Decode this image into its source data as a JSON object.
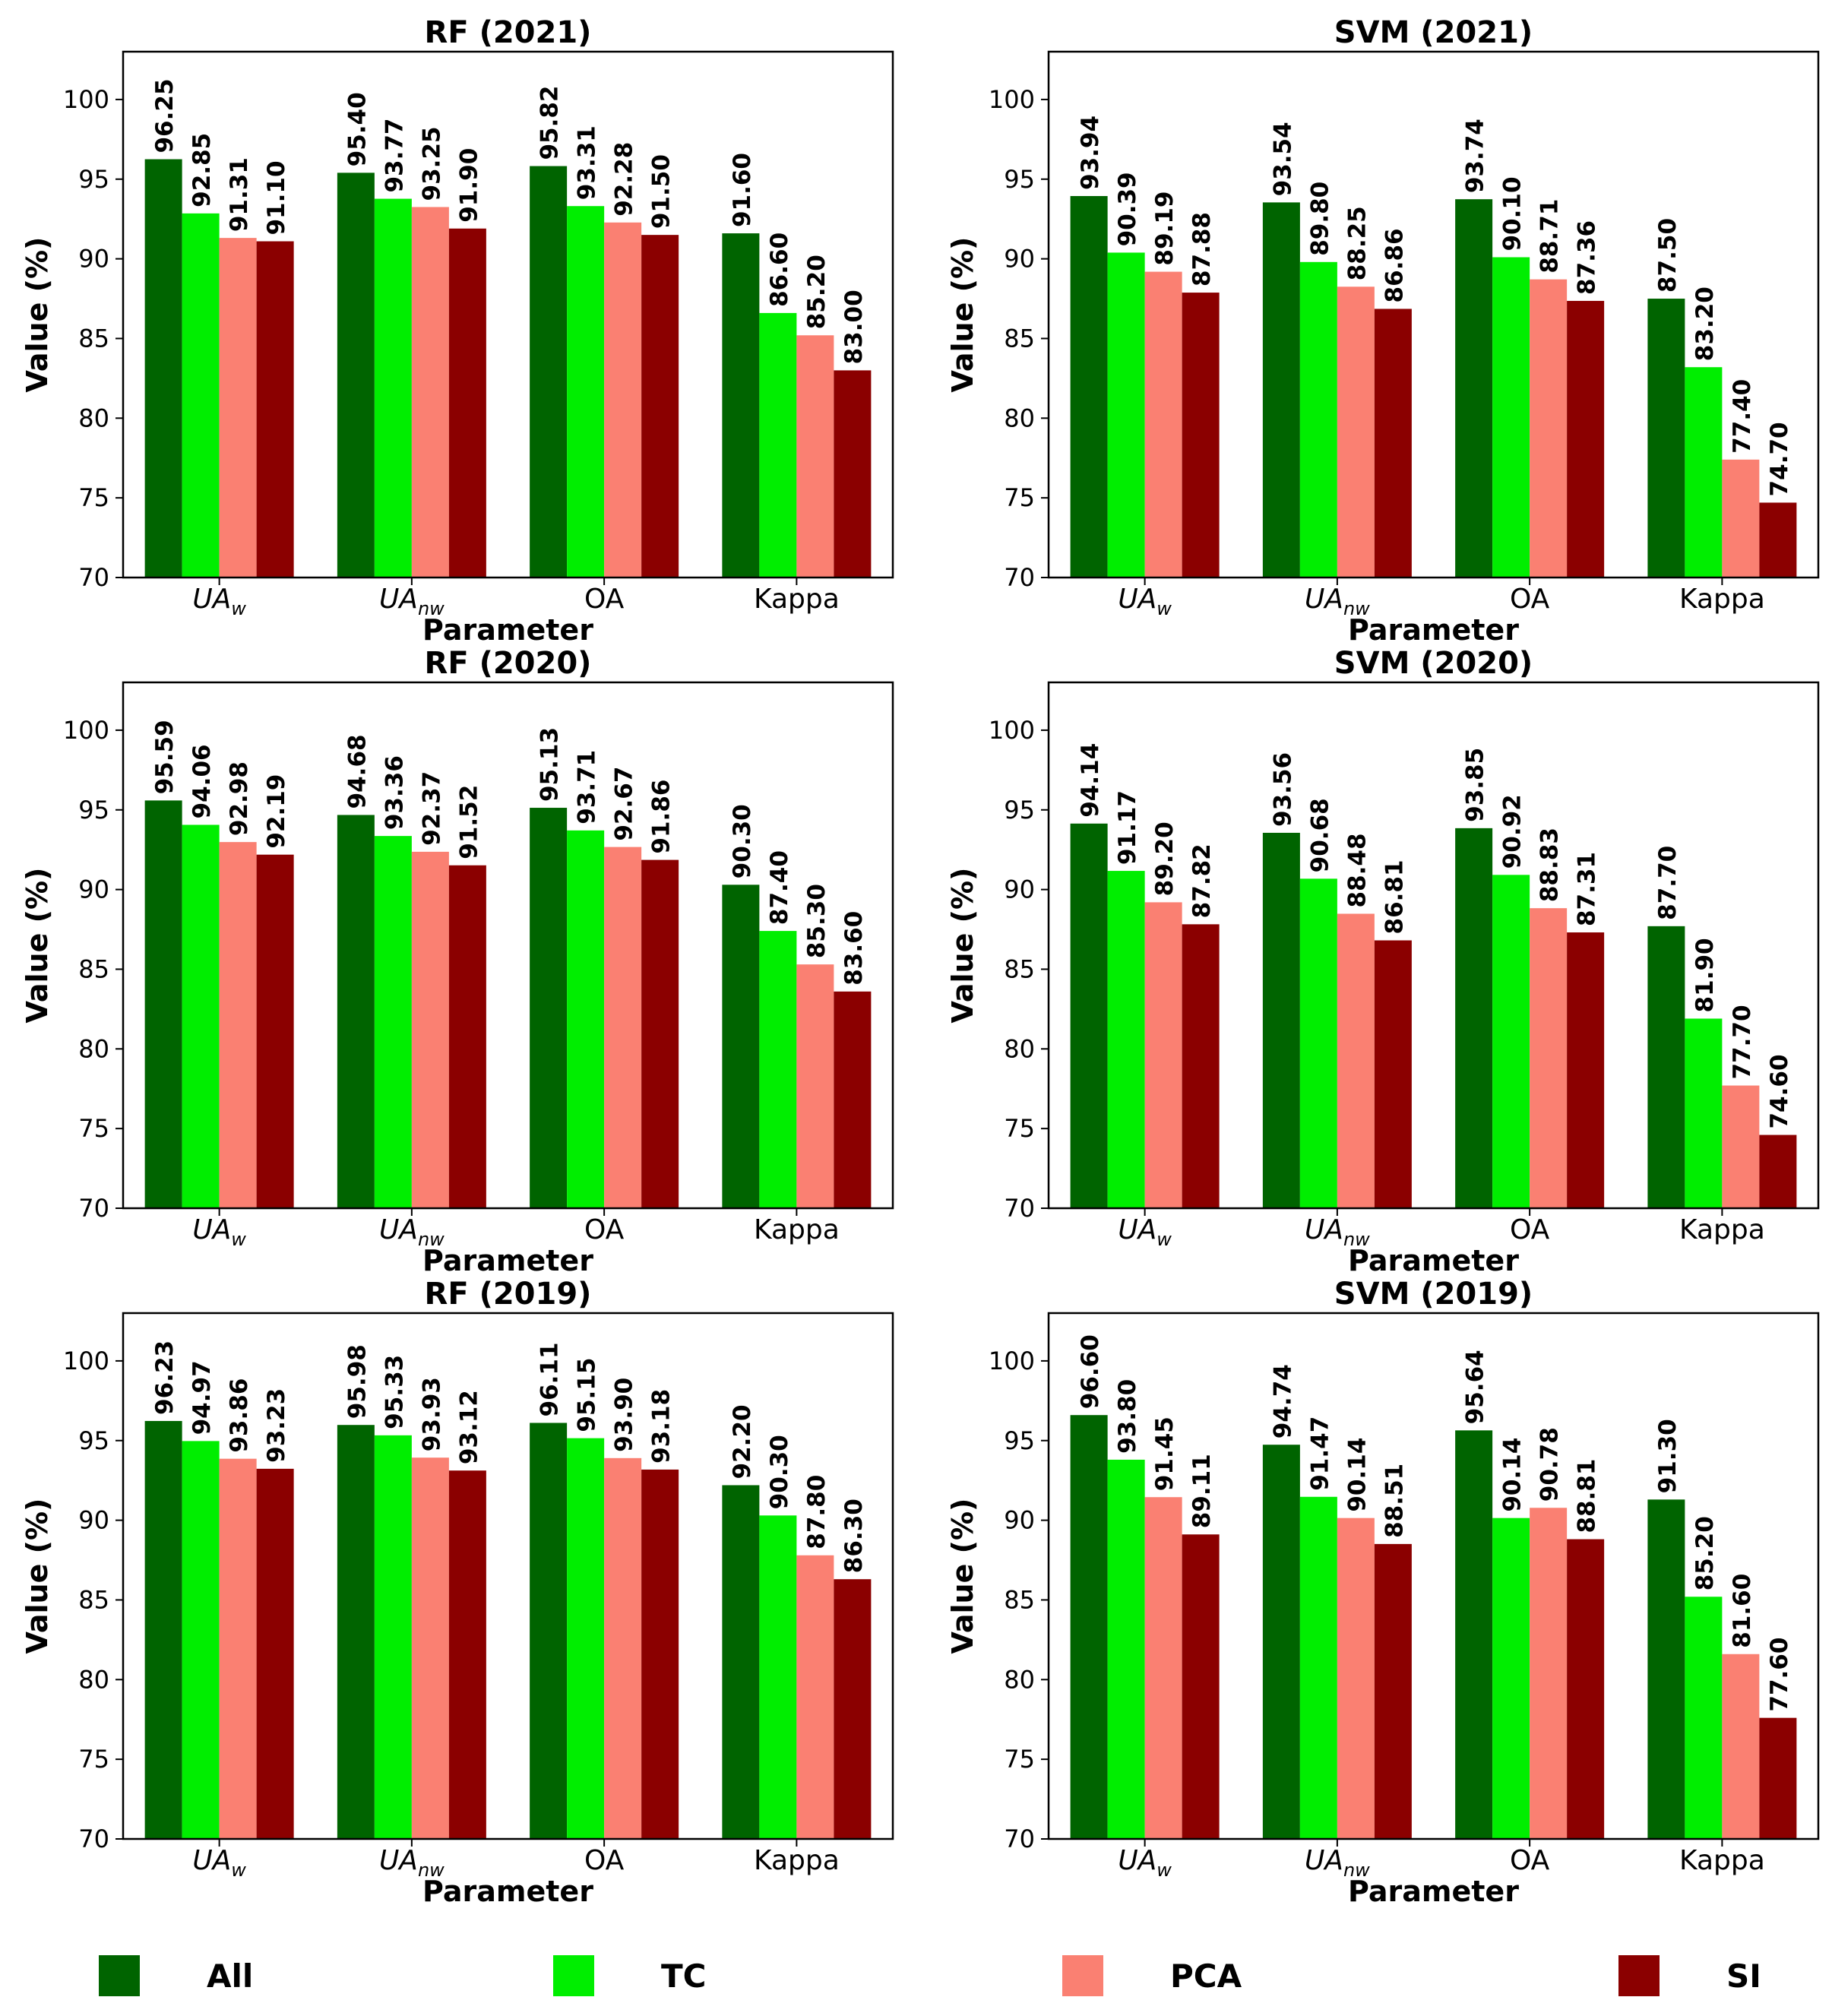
{
  "series_colors": {
    "All": "#006400",
    "TC": "#00ee00",
    "PCA": "#fa8072",
    "SI": "#8b0000"
  },
  "legend": [
    {
      "name": "All",
      "color": "#006400"
    },
    {
      "name": "TC",
      "color": "#00ee00"
    },
    {
      "name": "PCA",
      "color": "#fa8072"
    },
    {
      "name": "SI",
      "color": "#8b0000"
    }
  ],
  "chart_data": [
    {
      "type": "bar",
      "title": "RF (2021)",
      "xlabel": "Parameter",
      "ylabel": "Value (%)",
      "ylim": [
        70,
        103
      ],
      "yticks": [
        70,
        75,
        80,
        85,
        90,
        95,
        100
      ],
      "categories": [
        {
          "base": "UA",
          "sub": "w"
        },
        {
          "base": "UA",
          "sub": "nw"
        },
        {
          "base": "OA",
          "sub": ""
        },
        {
          "base": "Kappa",
          "sub": ""
        }
      ],
      "series": [
        {
          "name": "All",
          "values": [
            96.25,
            95.4,
            95.82,
            91.6
          ]
        },
        {
          "name": "TC",
          "values": [
            92.85,
            93.77,
            93.31,
            86.6
          ]
        },
        {
          "name": "PCA",
          "values": [
            91.31,
            93.25,
            92.28,
            85.2
          ]
        },
        {
          "name": "SI",
          "values": [
            91.1,
            91.9,
            91.5,
            83.0
          ]
        }
      ]
    },
    {
      "type": "bar",
      "title": "SVM (2021)",
      "xlabel": "Parameter",
      "ylabel": "Value (%)",
      "ylim": [
        70,
        103
      ],
      "yticks": [
        70,
        75,
        80,
        85,
        90,
        95,
        100
      ],
      "categories": [
        {
          "base": "UA",
          "sub": "w"
        },
        {
          "base": "UA",
          "sub": "nw"
        },
        {
          "base": "OA",
          "sub": ""
        },
        {
          "base": "Kappa",
          "sub": ""
        }
      ],
      "series": [
        {
          "name": "All",
          "values": [
            93.94,
            93.54,
            93.74,
            87.5
          ]
        },
        {
          "name": "TC",
          "values": [
            90.39,
            89.8,
            90.1,
            83.2
          ]
        },
        {
          "name": "PCA",
          "values": [
            89.19,
            88.25,
            88.71,
            77.4
          ]
        },
        {
          "name": "SI",
          "values": [
            87.88,
            86.86,
            87.36,
            74.7
          ]
        }
      ]
    },
    {
      "type": "bar",
      "title": "RF (2020)",
      "xlabel": "Parameter",
      "ylabel": "Value (%)",
      "ylim": [
        70,
        103
      ],
      "yticks": [
        70,
        75,
        80,
        85,
        90,
        95,
        100
      ],
      "categories": [
        {
          "base": "UA",
          "sub": "w"
        },
        {
          "base": "UA",
          "sub": "nw"
        },
        {
          "base": "OA",
          "sub": ""
        },
        {
          "base": "Kappa",
          "sub": ""
        }
      ],
      "series": [
        {
          "name": "All",
          "values": [
            95.59,
            94.68,
            95.13,
            90.3
          ]
        },
        {
          "name": "TC",
          "values": [
            94.06,
            93.36,
            93.71,
            87.4
          ]
        },
        {
          "name": "PCA",
          "values": [
            92.98,
            92.37,
            92.67,
            85.3
          ]
        },
        {
          "name": "SI",
          "values": [
            92.19,
            91.52,
            91.86,
            83.6
          ]
        }
      ]
    },
    {
      "type": "bar",
      "title": "SVM (2020)",
      "xlabel": "Parameter",
      "ylabel": "Value (%)",
      "ylim": [
        70,
        103
      ],
      "yticks": [
        70,
        75,
        80,
        85,
        90,
        95,
        100
      ],
      "categories": [
        {
          "base": "UA",
          "sub": "w"
        },
        {
          "base": "UA",
          "sub": "nw"
        },
        {
          "base": "OA",
          "sub": ""
        },
        {
          "base": "Kappa",
          "sub": ""
        }
      ],
      "series": [
        {
          "name": "All",
          "values": [
            94.14,
            93.56,
            93.85,
            87.7
          ]
        },
        {
          "name": "TC",
          "values": [
            91.17,
            90.68,
            90.92,
            81.9
          ]
        },
        {
          "name": "PCA",
          "values": [
            89.2,
            88.48,
            88.83,
            77.7
          ]
        },
        {
          "name": "SI",
          "values": [
            87.82,
            86.81,
            87.31,
            74.6
          ]
        }
      ]
    },
    {
      "type": "bar",
      "title": "RF (2019)",
      "xlabel": "Parameter",
      "ylabel": "Value (%)",
      "ylim": [
        70,
        103
      ],
      "yticks": [
        70,
        75,
        80,
        85,
        90,
        95,
        100
      ],
      "categories": [
        {
          "base": "UA",
          "sub": "w"
        },
        {
          "base": "UA",
          "sub": "nw"
        },
        {
          "base": "OA",
          "sub": ""
        },
        {
          "base": "Kappa",
          "sub": ""
        }
      ],
      "series": [
        {
          "name": "All",
          "values": [
            96.23,
            95.98,
            96.11,
            92.2
          ]
        },
        {
          "name": "TC",
          "values": [
            94.97,
            95.33,
            95.15,
            90.3
          ]
        },
        {
          "name": "PCA",
          "values": [
            93.86,
            93.93,
            93.9,
            87.8
          ]
        },
        {
          "name": "SI",
          "values": [
            93.23,
            93.12,
            93.18,
            86.3
          ]
        }
      ]
    },
    {
      "type": "bar",
      "title": "SVM (2019)",
      "xlabel": "Parameter",
      "ylabel": "Value (%)",
      "ylim": [
        70,
        103
      ],
      "yticks": [
        70,
        75,
        80,
        85,
        90,
        95,
        100
      ],
      "categories": [
        {
          "base": "UA",
          "sub": "w"
        },
        {
          "base": "UA",
          "sub": "nw"
        },
        {
          "base": "OA",
          "sub": ""
        },
        {
          "base": "Kappa",
          "sub": ""
        }
      ],
      "series": [
        {
          "name": "All",
          "values": [
            96.6,
            94.74,
            95.64,
            91.3
          ]
        },
        {
          "name": "TC",
          "values": [
            93.8,
            91.47,
            90.14,
            85.2
          ]
        },
        {
          "name": "PCA",
          "values": [
            91.45,
            90.14,
            90.78,
            81.6
          ]
        },
        {
          "name": "SI",
          "values": [
            89.11,
            88.51,
            88.81,
            77.6
          ]
        }
      ]
    }
  ]
}
